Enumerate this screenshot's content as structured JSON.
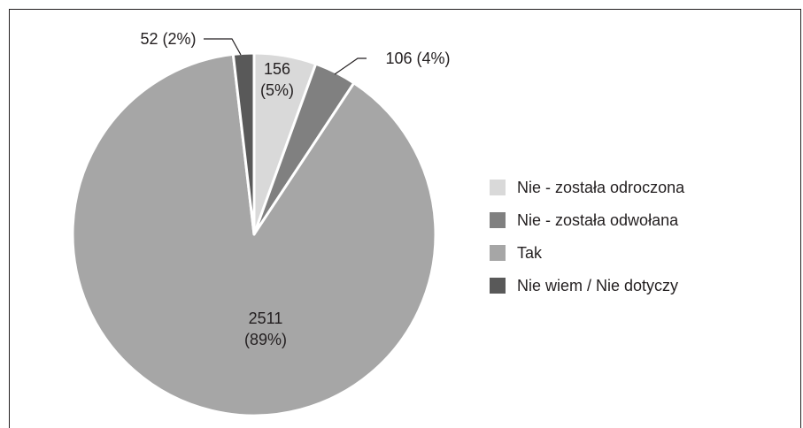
{
  "chart_data": {
    "type": "pie",
    "categories": [
      "Nie - została odroczona",
      "Nie - została odwołana",
      "Tak",
      "Nie wiem / Nie dotyczy"
    ],
    "values": [
      156,
      106,
      2511,
      52
    ],
    "value_labels": [
      "156 (5%)",
      "106 (4%)",
      "2511 (89%)",
      "52 (2%)"
    ],
    "colors": [
      "#d9d9d9",
      "#808080",
      "#a6a6a6",
      "#595959"
    ],
    "legend": "right"
  }
}
